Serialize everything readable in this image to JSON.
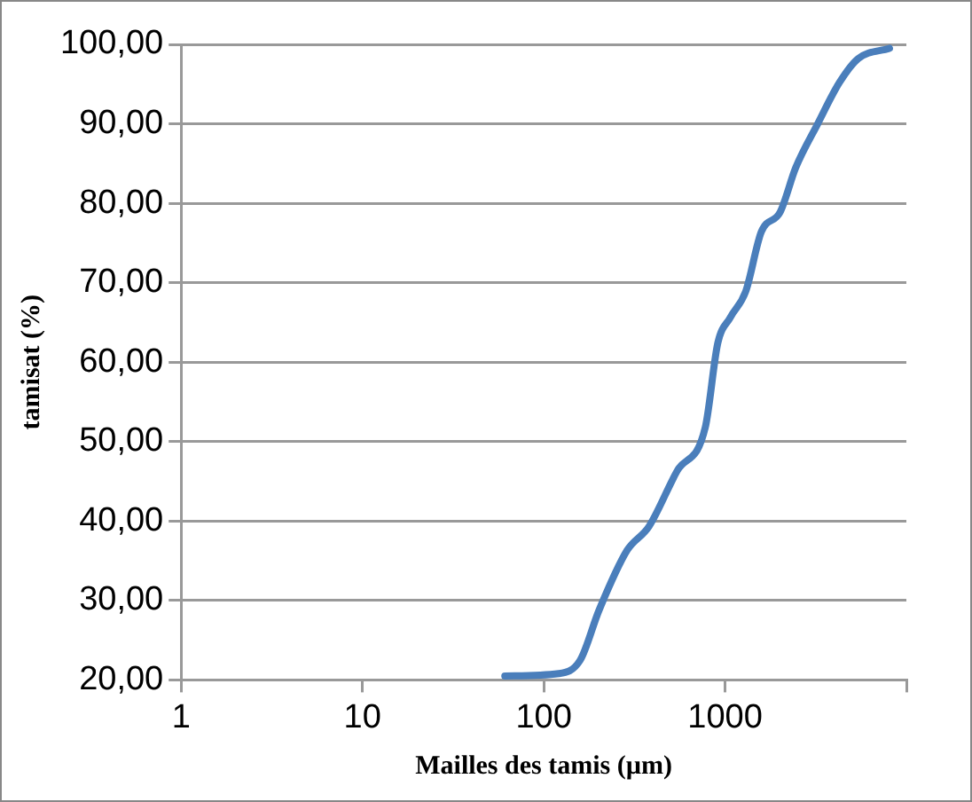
{
  "chart_data": {
    "type": "line",
    "xlabel": "Mailles des tamis (µm)",
    "ylabel": "tamisat (%)",
    "log": "x",
    "xlim": [
      1,
      10000
    ],
    "xticks": [
      1,
      10,
      100,
      1000,
      {
        "value": 10000,
        "label": null
      }
    ],
    "ylim": [
      20,
      100
    ],
    "yticks": [
      {
        "value": 20,
        "label": "20,00"
      },
      {
        "value": 30,
        "label": "30,00"
      },
      {
        "value": 40,
        "label": "40,00"
      },
      {
        "value": 50,
        "label": "50,00"
      },
      {
        "value": 60,
        "label": "60,00"
      },
      {
        "value": 70,
        "label": "70,00"
      },
      {
        "value": 80,
        "label": "80,00"
      },
      {
        "value": 90,
        "label": "90,00"
      },
      {
        "value": 100,
        "label": "100,00"
      }
    ],
    "grid": "y",
    "legend": false,
    "marker": "none",
    "line_style": "solid",
    "series": [
      {
        "color": "#4a7ebb",
        "x": [
          61,
          121,
          159,
          202,
          288,
          380,
          544,
          778,
          912,
          1067,
          1300,
          1585,
          2014,
          2455,
          3243,
          4276,
          5420,
          8070
        ],
        "values": [
          20.5,
          20.8,
          22.5,
          28.8,
          36.3,
          39.3,
          46.3,
          51.8,
          62.4,
          65.6,
          68.9,
          76.4,
          78.9,
          84.5,
          90,
          95.2,
          98.2,
          99.5
        ]
      }
    ]
  }
}
